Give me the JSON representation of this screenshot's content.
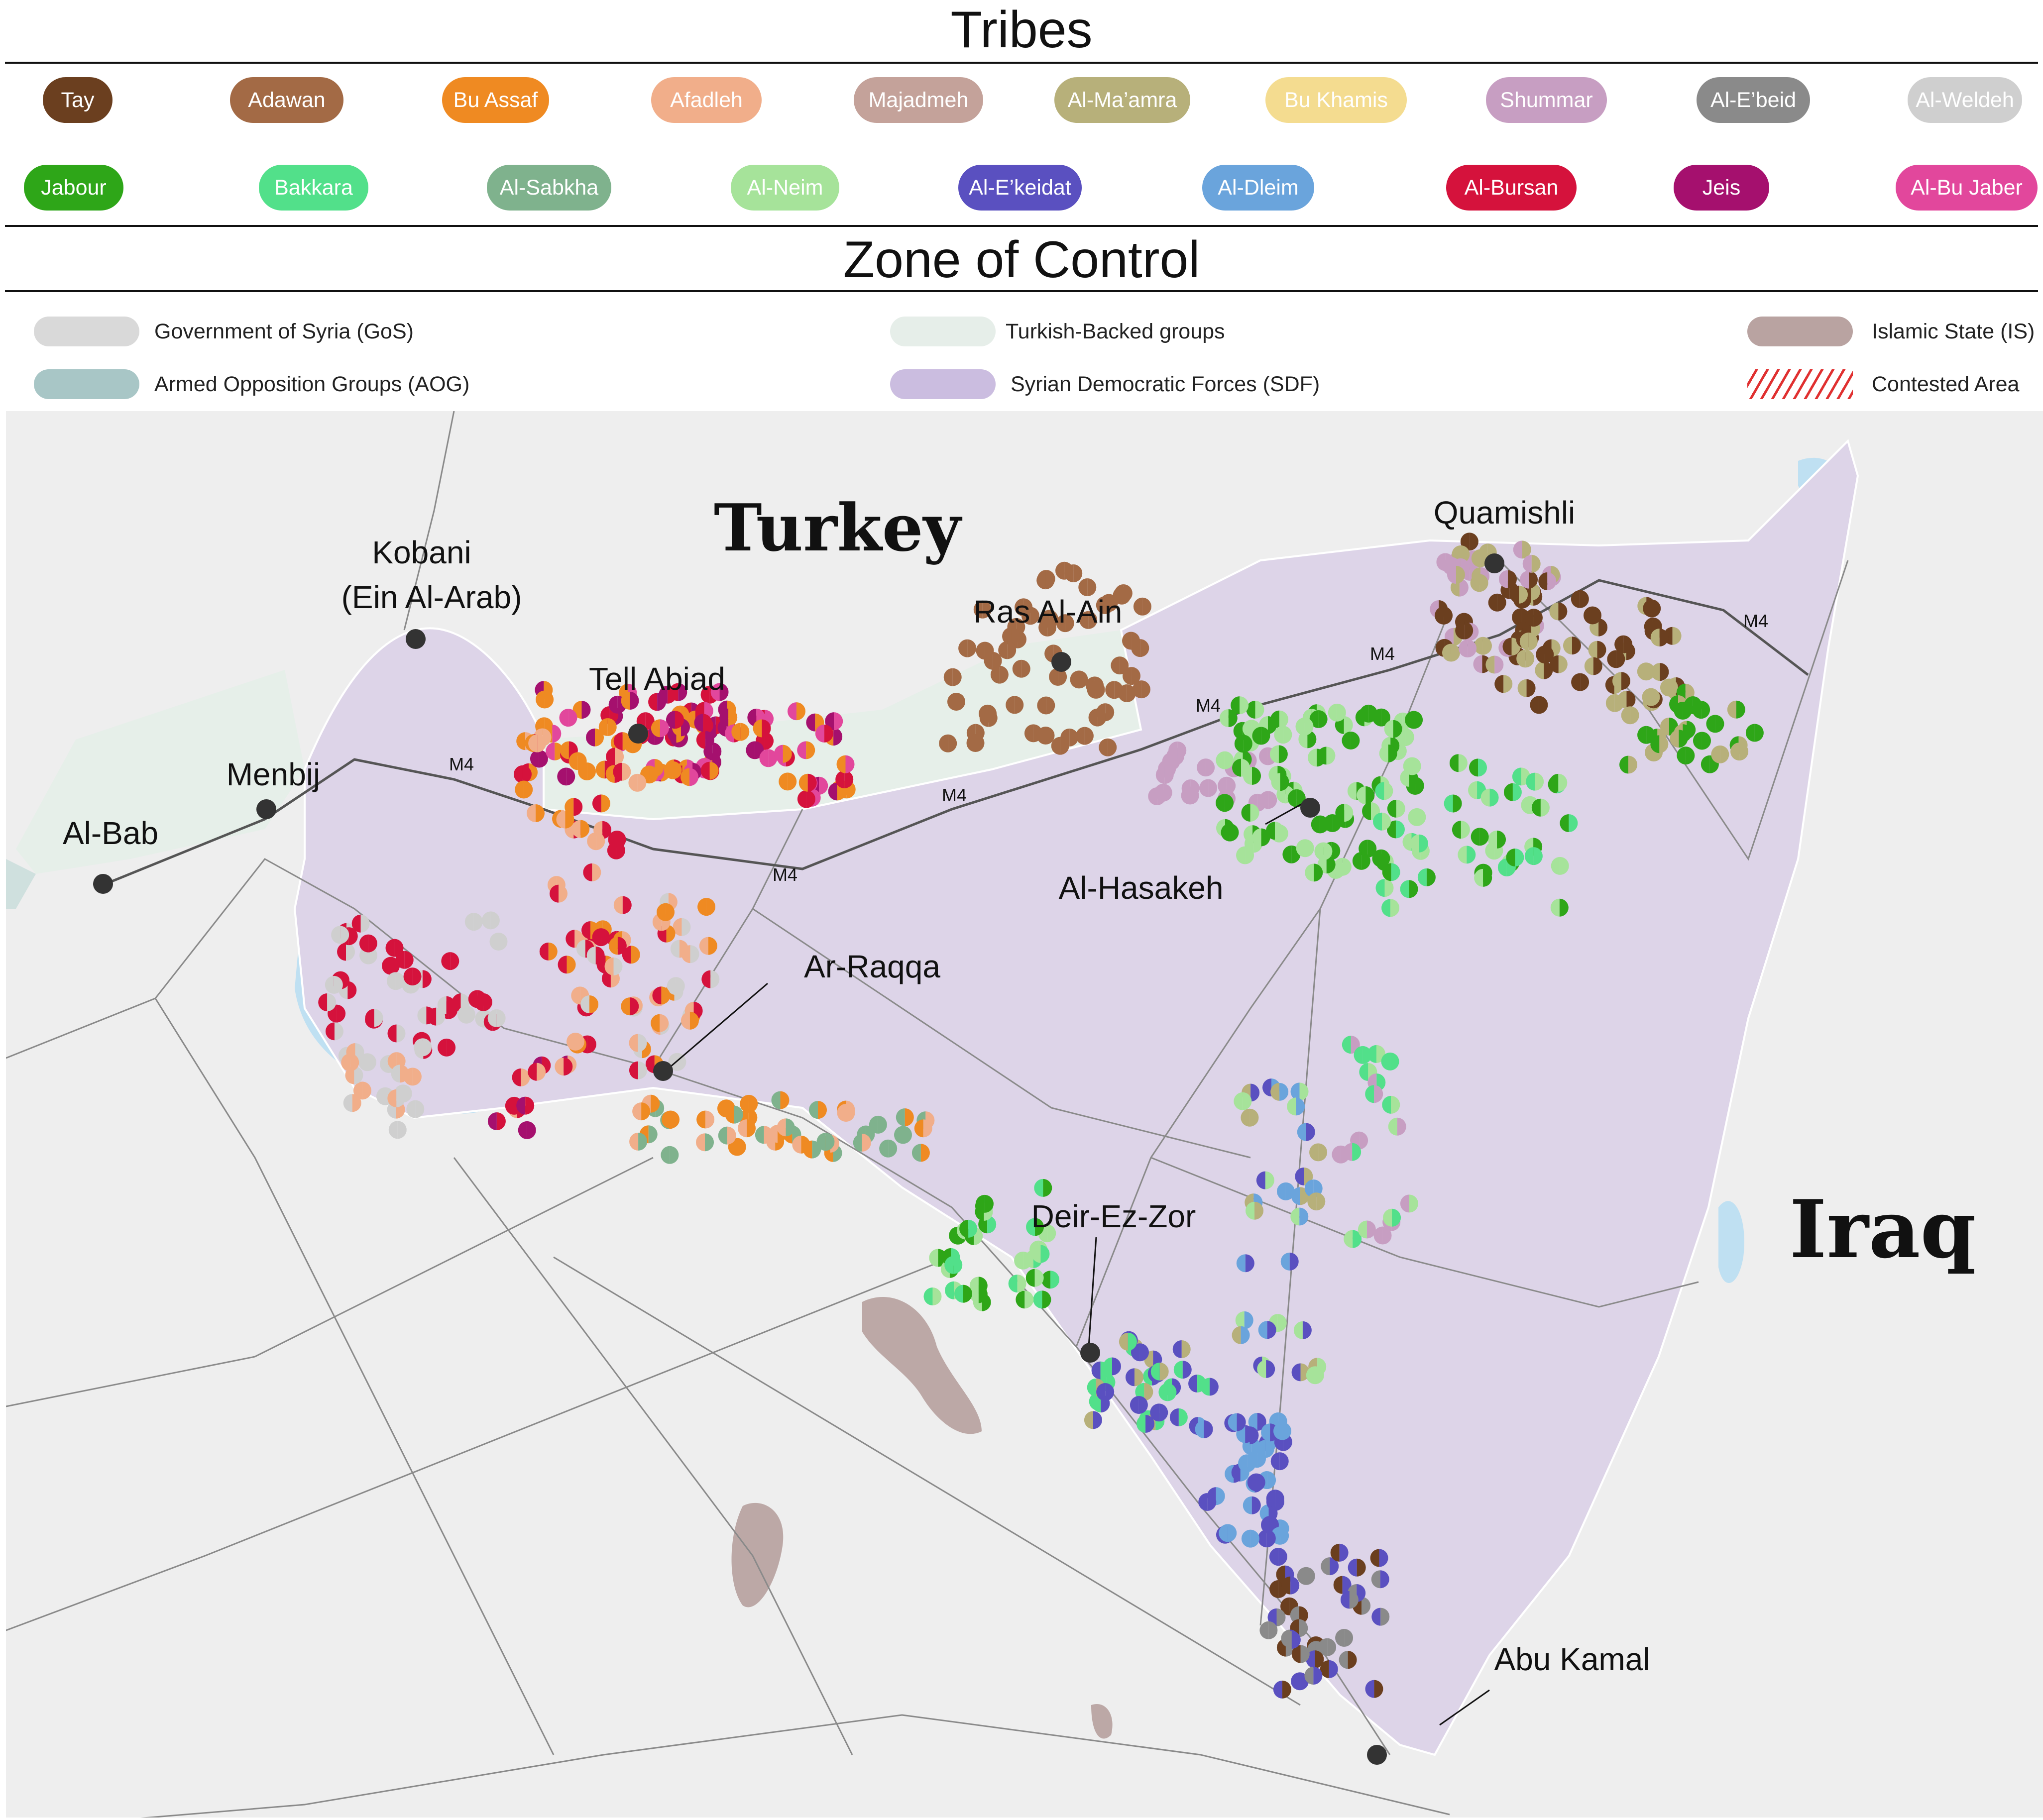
{
  "tribes_section": {
    "title": "Tribes",
    "items": [
      {
        "label": "Tay",
        "color": "#6b3f1f"
      },
      {
        "label": "Adawan",
        "color": "#a36a45"
      },
      {
        "label": "Bu Assaf",
        "color": "#ef8a22"
      },
      {
        "label": "Afadleh",
        "color": "#f1ae8a"
      },
      {
        "label": "Majadmeh",
        "color": "#c4a29a"
      },
      {
        "label": "Al-Ma’amra",
        "color": "#b7b07a"
      },
      {
        "label": "Bu Khamis",
        "color": "#f4dc90"
      },
      {
        "label": "Shummar",
        "color": "#c79ec2"
      },
      {
        "label": "Al-E’beid",
        "color": "#8a8a8a"
      },
      {
        "label": "Al-Weldeh",
        "color": "#cfcfcf"
      },
      {
        "label": "Jabour",
        "color": "#2ea618"
      },
      {
        "label": "Bakkara",
        "color": "#52e08a"
      },
      {
        "label": "Al-Sabkha",
        "color": "#7fb28d"
      },
      {
        "label": "Al-Neim",
        "color": "#a6e39a"
      },
      {
        "label": "Al-E’keidat",
        "color": "#5a50c0"
      },
      {
        "label": "Al-Dleim",
        "color": "#6aa4dc"
      },
      {
        "label": "Al-Bursan",
        "color": "#d5123c"
      },
      {
        "label": "Jeis",
        "color": "#a5106e"
      },
      {
        "label": "Al-Bu Jaber",
        "color": "#e2479c"
      }
    ]
  },
  "zone_section": {
    "title": "Zone of Control",
    "items": [
      {
        "label": "Government of Syria (GoS)",
        "color": "#d9d9d9"
      },
      {
        "label": "Armed Opposition Groups (AOG)",
        "color": "#a8c6c6"
      },
      {
        "label": "Turkish-Backed groups",
        "color": "#e6eee9"
      },
      {
        "label": "Syrian Democratic Forces (SDF)",
        "color": "#cbbde0"
      },
      {
        "label": "Islamic State (IS)",
        "color": "#b9a3a1"
      },
      {
        "label": "Contested Area",
        "color": "#e03030"
      }
    ]
  },
  "map": {
    "countries": [
      {
        "label": "Turkey"
      },
      {
        "label": "Iraq"
      }
    ],
    "cities": [
      {
        "label": "Kobani"
      },
      {
        "label": "(Ein Al-Arab)"
      },
      {
        "label": "Tell Abiad"
      },
      {
        "label": "Ras Al-Ain"
      },
      {
        "label": "Quamishli"
      },
      {
        "label": "Menbij"
      },
      {
        "label": "Al-Bab"
      },
      {
        "label": "Al-Hasakeh"
      },
      {
        "label": "Ar-Raqqa"
      },
      {
        "label": "Deir-Ez-Zor"
      },
      {
        "label": "Abu Kamal"
      }
    ],
    "road_label": "M4",
    "colors": {
      "background": "#eeeeee",
      "sdf_zone": "#ddd4e8",
      "turkish_zone": "#e6efe9",
      "aog_zone": "#cfe0de",
      "is_zone": "#bca8a6",
      "water": "#bfe0f2",
      "road": "#8a8a8a",
      "city_dot": "#333333"
    }
  }
}
